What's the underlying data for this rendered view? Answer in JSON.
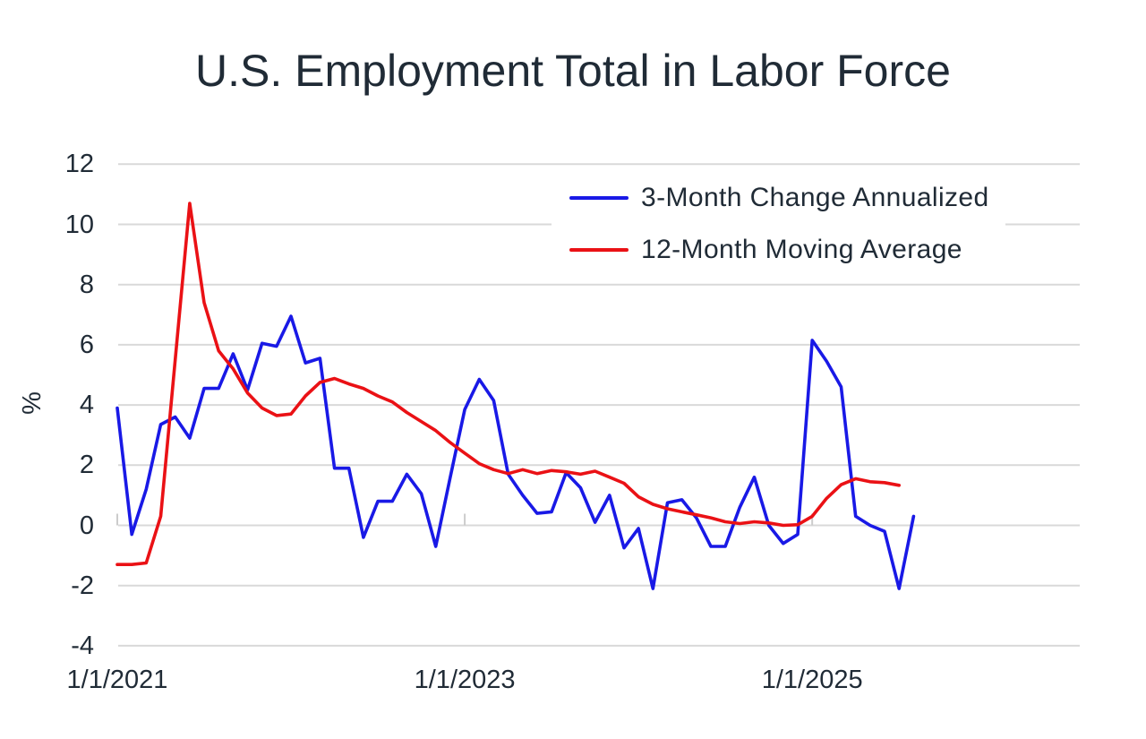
{
  "chart_data": {
    "type": "line",
    "title": "U.S. Employment Total in Labor Force",
    "ylabel": "%",
    "x_start": "2021-01",
    "frequency": "monthly",
    "ylim": [
      -4,
      12
    ],
    "y_ticks": [
      12,
      10,
      8,
      6,
      4,
      2,
      0,
      -2,
      -4
    ],
    "x_ticks": [
      {
        "label": "1/1/2021",
        "month_index": 0
      },
      {
        "label": "1/1/2023",
        "month_index": 24
      },
      {
        "label": "1/1/2025",
        "month_index": 48
      }
    ],
    "grid": true,
    "grid_color": "#d9d9d9",
    "axis_tick_color": "#cccccc",
    "text_color": "#202b36",
    "legend_position": "top-right",
    "series": [
      {
        "name": "3-Month Change Annualized",
        "color": "#1919e6",
        "values": [
          3.9,
          -0.3,
          1.2,
          3.35,
          3.6,
          2.9,
          4.55,
          4.55,
          5.7,
          4.5,
          6.05,
          5.95,
          6.95,
          5.4,
          5.55,
          1.9,
          1.9,
          -0.4,
          0.8,
          0.8,
          1.7,
          1.05,
          -0.7,
          1.6,
          3.85,
          4.85,
          4.15,
          1.7,
          1.0,
          0.4,
          0.45,
          1.75,
          1.25,
          0.1,
          1.0,
          -0.75,
          -0.1,
          -2.1,
          0.75,
          0.85,
          0.25,
          -0.7,
          -0.7,
          0.6,
          1.6,
          0.0,
          -0.6,
          -0.3,
          6.15,
          5.45,
          4.6,
          0.3,
          0.0,
          -0.2,
          -2.1,
          0.3
        ]
      },
      {
        "name": "12-Month Moving Average",
        "color": "#ea1115",
        "values": [
          -1.3,
          -1.3,
          -1.25,
          0.3,
          5.5,
          10.7,
          7.4,
          5.8,
          5.2,
          4.4,
          3.9,
          3.65,
          3.7,
          4.3,
          4.75,
          4.88,
          4.7,
          4.55,
          4.3,
          4.1,
          3.75,
          3.45,
          3.15,
          2.75,
          2.4,
          2.05,
          1.85,
          1.72,
          1.85,
          1.72,
          1.82,
          1.78,
          1.7,
          1.8,
          1.6,
          1.4,
          0.95,
          0.7,
          0.55,
          0.45,
          0.35,
          0.25,
          0.12,
          0.06,
          0.12,
          0.08,
          0.0,
          0.02,
          0.3,
          0.9,
          1.35,
          1.55,
          1.45,
          1.42,
          1.33
        ]
      }
    ]
  }
}
